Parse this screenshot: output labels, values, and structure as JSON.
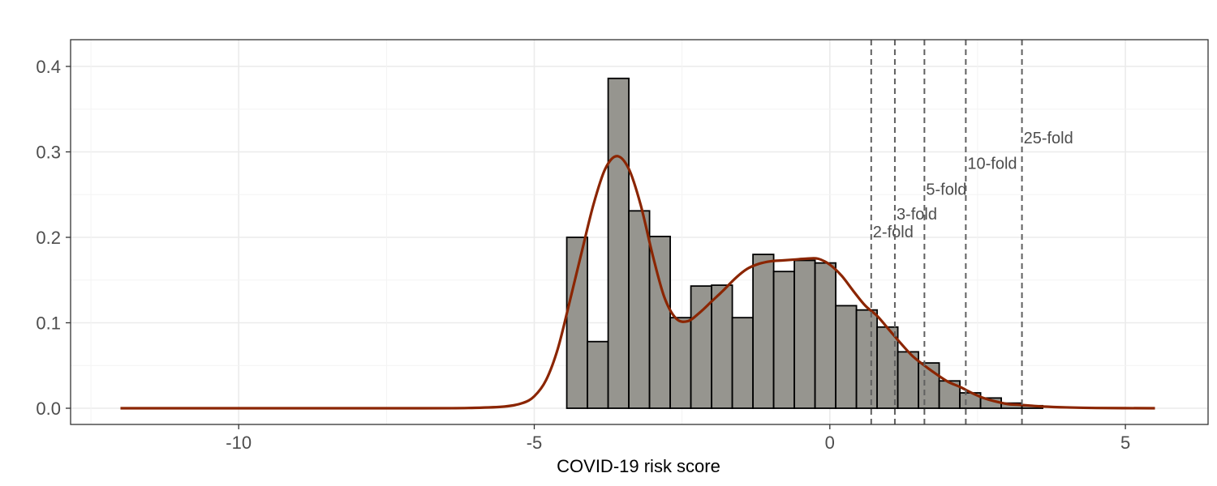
{
  "chart_data": {
    "type": "bar",
    "xlabel": "COVID-19 risk score",
    "ylabel": "",
    "xlim": [
      -12.5,
      6.5
    ],
    "ylim": [
      -0.02,
      0.43
    ],
    "x_ticks": [
      -10,
      -5,
      0,
      5
    ],
    "y_ticks": [
      0.0,
      0.1,
      0.2,
      0.3,
      0.4
    ],
    "x_tick_labels": [
      "-10",
      "-5",
      "0",
      "5"
    ],
    "y_tick_labels": [
      "0.0",
      "0.1",
      "0.2",
      "0.3",
      "0.4"
    ],
    "grid": true,
    "histogram": {
      "bin_width": 0.35,
      "bin_start": -4.45,
      "values": [
        0.2,
        0.078,
        0.386,
        0.231,
        0.201,
        0.106,
        0.143,
        0.144,
        0.106,
        0.18,
        0.16,
        0.173,
        0.17,
        0.12,
        0.115,
        0.095,
        0.066,
        0.053,
        0.032,
        0.018,
        0.012,
        0.006,
        0.003
      ],
      "fill": "#96958f",
      "stroke": "#000000"
    },
    "density": {
      "color": "#8b2500",
      "x": [
        -12.0,
        -7.0,
        -6.0,
        -5.5,
        -5.2,
        -5.0,
        -4.8,
        -4.6,
        -4.4,
        -4.2,
        -4.0,
        -3.8,
        -3.6,
        -3.4,
        -3.2,
        -3.0,
        -2.8,
        -2.6,
        -2.4,
        -2.2,
        -2.0,
        -1.8,
        -1.6,
        -1.4,
        -1.2,
        -1.0,
        -0.8,
        -0.6,
        -0.4,
        -0.2,
        0.0,
        0.2,
        0.4,
        0.6,
        0.8,
        1.0,
        1.2,
        1.4,
        1.6,
        1.8,
        2.0,
        2.2,
        2.4,
        2.6,
        2.8,
        3.0,
        3.2,
        3.4,
        3.6,
        4.0,
        4.5,
        5.5
      ],
      "y": [
        0.0,
        0.0,
        0.0005,
        0.002,
        0.006,
        0.014,
        0.033,
        0.07,
        0.125,
        0.182,
        0.238,
        0.28,
        0.295,
        0.28,
        0.238,
        0.18,
        0.13,
        0.105,
        0.102,
        0.112,
        0.125,
        0.138,
        0.152,
        0.163,
        0.169,
        0.172,
        0.173,
        0.174,
        0.175,
        0.175,
        0.168,
        0.155,
        0.137,
        0.12,
        0.108,
        0.092,
        0.076,
        0.061,
        0.05,
        0.04,
        0.031,
        0.025,
        0.018,
        0.012,
        0.008,
        0.005,
        0.004,
        0.003,
        0.002,
        0.001,
        0.0003,
        0.0
      ]
    },
    "fold_lines": [
      {
        "x": 0.7,
        "label": "2-fold",
        "label_y": 0.2
      },
      {
        "x": 1.1,
        "label": "3-fold",
        "label_y": 0.221
      },
      {
        "x": 1.6,
        "label": "5-fold",
        "label_y": 0.25
      },
      {
        "x": 2.3,
        "label": "10-fold",
        "label_y": 0.28
      },
      {
        "x": 3.25,
        "label": "25-fold",
        "label_y": 0.31
      }
    ],
    "fold_line_color": "#606060"
  }
}
